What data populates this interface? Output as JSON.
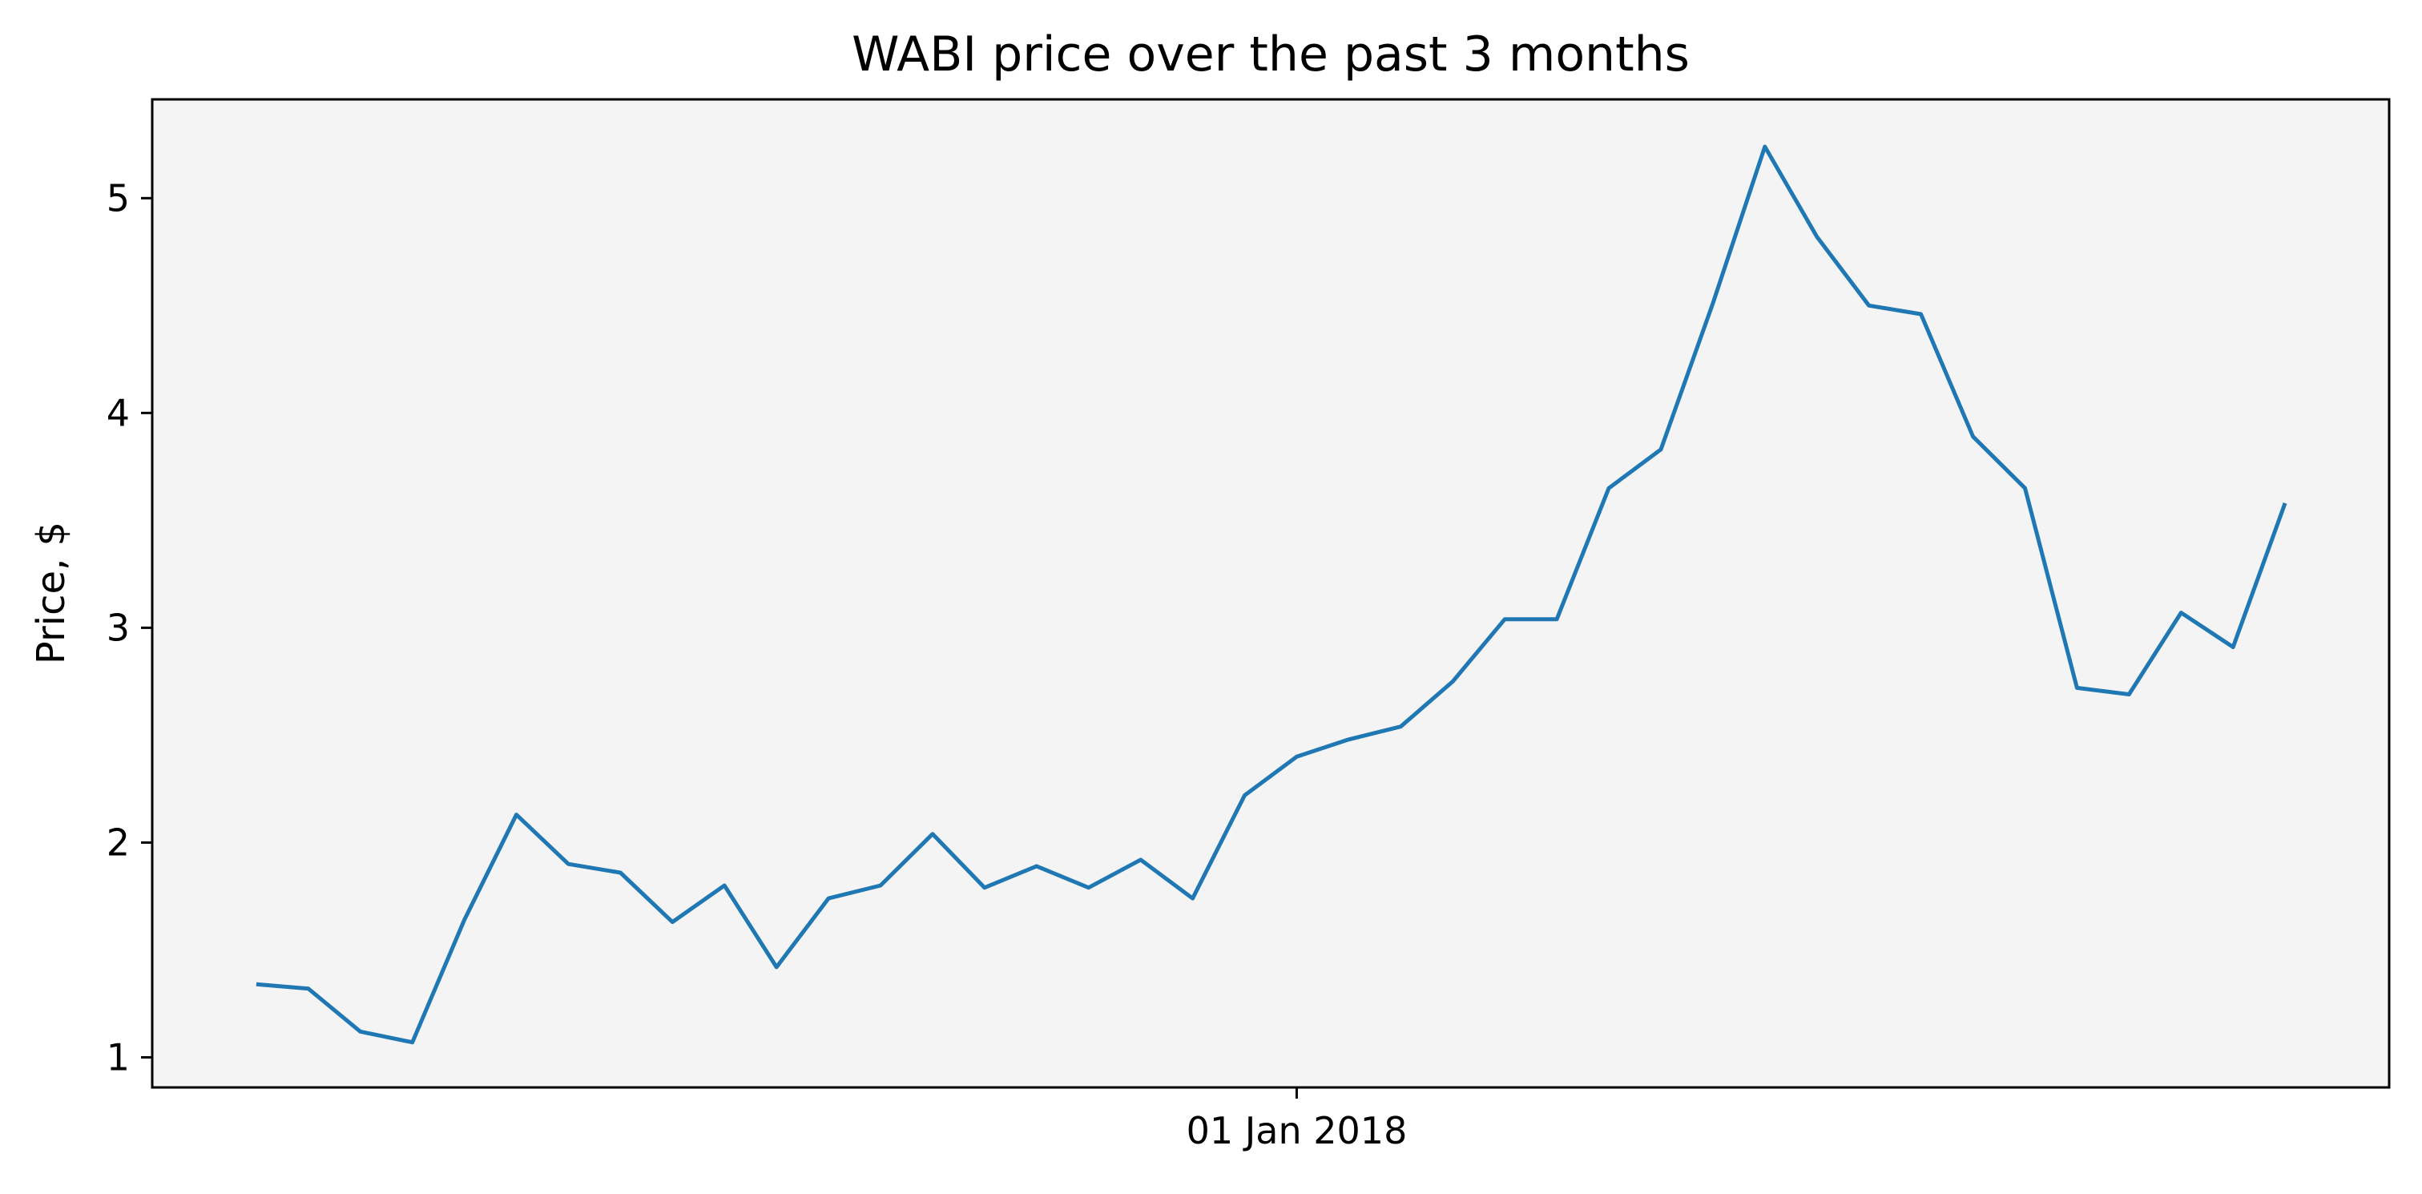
{
  "chart_data": {
    "type": "line",
    "title": "WABI price over the past 3 months",
    "xlabel": "",
    "ylabel": "Price, $",
    "x_tick_labels": [
      {
        "label": "01 Jan 2018",
        "index": 20
      }
    ],
    "yticks": [
      1,
      2,
      3,
      4,
      5
    ],
    "ylim": [
      0.86,
      5.46
    ],
    "xlim": [
      -2,
      41
    ],
    "grid": false,
    "background_color": "#f4f4f4",
    "line_color": "#1f77b4",
    "series": [
      {
        "x": [
          0,
          1,
          2,
          3,
          4,
          5,
          6,
          7,
          8,
          9,
          10,
          11,
          12,
          13,
          14,
          15,
          16,
          17,
          18,
          19,
          20,
          21,
          22,
          23,
          24,
          25,
          26,
          27,
          28,
          29,
          30,
          31,
          32,
          33,
          34,
          35,
          36,
          37,
          38,
          39
        ],
        "values": [
          1.34,
          1.32,
          1.12,
          1.07,
          1.64,
          2.13,
          1.9,
          1.86,
          1.63,
          1.8,
          1.42,
          1.74,
          1.8,
          2.04,
          1.79,
          1.89,
          1.79,
          1.92,
          1.74,
          2.22,
          2.4,
          2.48,
          2.54,
          2.75,
          3.04,
          3.04,
          3.65,
          3.83,
          4.51,
          5.24,
          4.82,
          4.5,
          4.46,
          3.89,
          3.65,
          2.72,
          2.69,
          3.07,
          2.91,
          3.58
        ]
      }
    ]
  }
}
